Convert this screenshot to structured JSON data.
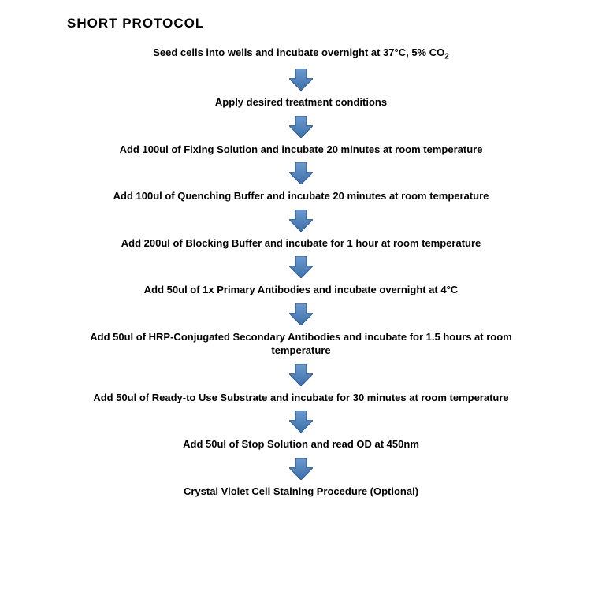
{
  "title": "SHORT PROTOCOL",
  "arrow": {
    "fill_top": "#6b9bd1",
    "fill_bottom": "#3d6fa8",
    "stroke": "#2d5a8f",
    "width": 30,
    "height": 28
  },
  "steps": [
    {
      "text": "Seed cells into wells and incubate overnight at 37°C, 5% CO",
      "sub": "2"
    },
    {
      "text": "Apply desired treatment conditions"
    },
    {
      "text": "Add 100ul of Fixing Solution and incubate 20 minutes at room temperature"
    },
    {
      "text": "Add 100ul of Quenching Buffer and incubate 20 minutes at room temperature"
    },
    {
      "text": "Add 200ul of Blocking Buffer and incubate for 1 hour at room temperature"
    },
    {
      "text": "Add 50ul of 1x Primary Antibodies and incubate overnight at 4°C"
    },
    {
      "text": "Add 50ul of HRP-Conjugated Secondary Antibodies and incubate for 1.5 hours at room temperature"
    },
    {
      "text": "Add 50ul of Ready-to Use Substrate and incubate for 30 minutes at room temperature"
    },
    {
      "text": "Add 50ul of Stop Solution and read OD at 450nm"
    },
    {
      "text": "Crystal Violet Cell Staining Procedure (Optional)"
    }
  ],
  "text_color": "#000000",
  "background": "#ffffff",
  "title_fontsize": 17,
  "step_fontsize": 13
}
